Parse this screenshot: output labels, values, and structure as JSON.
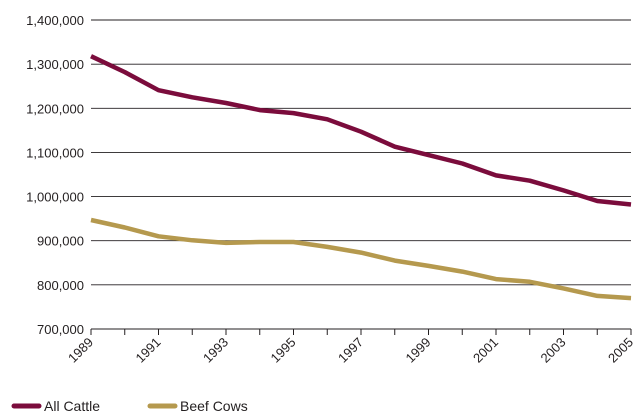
{
  "chart_data": {
    "type": "line",
    "title": "",
    "xlabel": "",
    "ylabel": "",
    "x": [
      1989,
      1990,
      1991,
      1992,
      1993,
      1994,
      1995,
      1996,
      1997,
      1998,
      1999,
      2000,
      2001,
      2002,
      2003,
      2004,
      2005
    ],
    "x_tick_labels": [
      "1989",
      "1991",
      "1993",
      "1995",
      "1997",
      "1999",
      "2001",
      "2003",
      "2005"
    ],
    "y_tick_labels": [
      "700,000",
      "800,000",
      "900,000",
      "1,000,000",
      "1,100,000",
      "1,200,000",
      "1,300,000",
      "1,400,000"
    ],
    "ylim": [
      700000,
      1400000
    ],
    "xlim": [
      1989,
      2005
    ],
    "grid": "horizontal",
    "legend_position": "bottom-left",
    "series": [
      {
        "name": "All Cattle",
        "color": "#7b0c3c",
        "values": [
          1318000,
          1282000,
          1241000,
          1225000,
          1212000,
          1196000,
          1189000,
          1175000,
          1147000,
          1113000,
          1094000,
          1075000,
          1048000,
          1036000,
          1014000,
          990000,
          982000
        ]
      },
      {
        "name": "Beef Cows",
        "color": "#b5994e",
        "values": [
          947000,
          930000,
          910000,
          901000,
          895000,
          897000,
          897000,
          886000,
          873000,
          855000,
          843000,
          830000,
          813000,
          807000,
          792000,
          775000,
          770000
        ]
      }
    ]
  }
}
